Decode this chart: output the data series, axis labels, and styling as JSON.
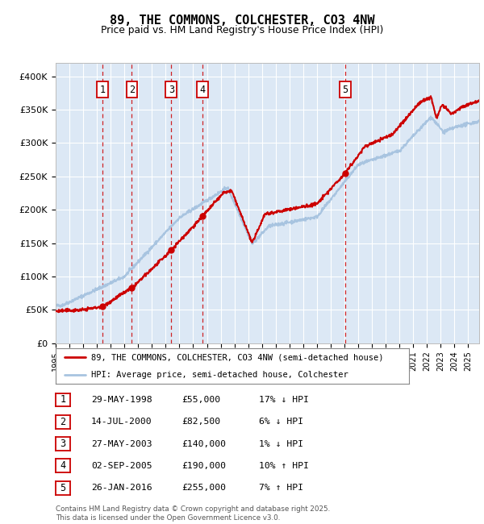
{
  "title": "89, THE COMMONS, COLCHESTER, CO3 4NW",
  "subtitle": "Price paid vs. HM Land Registry's House Price Index (HPI)",
  "legend_line1": "89, THE COMMONS, COLCHESTER, CO3 4NW (semi-detached house)",
  "legend_line2": "HPI: Average price, semi-detached house, Colchester",
  "sale_points": [
    {
      "label": "1",
      "date": "29-MAY-1998",
      "price": 55000,
      "year": 1998.41
    },
    {
      "label": "2",
      "date": "14-JUL-2000",
      "price": 82500,
      "year": 2000.54
    },
    {
      "label": "3",
      "date": "27-MAY-2003",
      "price": 140000,
      "year": 2003.41
    },
    {
      "label": "4",
      "date": "02-SEP-2005",
      "price": 190000,
      "year": 2005.67
    },
    {
      "label": "5",
      "date": "26-JAN-2016",
      "price": 255000,
      "year": 2016.07
    }
  ],
  "table_rows": [
    [
      "1",
      "29-MAY-1998",
      "£55,000",
      "17% ↓ HPI"
    ],
    [
      "2",
      "14-JUL-2000",
      "£82,500",
      "6% ↓ HPI"
    ],
    [
      "3",
      "27-MAY-2003",
      "£140,000",
      "1% ↓ HPI"
    ],
    [
      "4",
      "02-SEP-2005",
      "£190,000",
      "10% ↑ HPI"
    ],
    [
      "5",
      "26-JAN-2016",
      "£255,000",
      "7% ↑ HPI"
    ]
  ],
  "hpi_color": "#a8c4e0",
  "price_color": "#cc0000",
  "plot_bg": "#dce8f5",
  "ylim": [
    0,
    420000
  ],
  "yticks": [
    0,
    50000,
    100000,
    150000,
    200000,
    250000,
    300000,
    350000,
    400000
  ],
  "ytick_labels": [
    "£0",
    "£50K",
    "£100K",
    "£150K",
    "£200K",
    "£250K",
    "£300K",
    "£350K",
    "£400K"
  ],
  "xlim_start": 1995.0,
  "xlim_end": 2025.8
}
